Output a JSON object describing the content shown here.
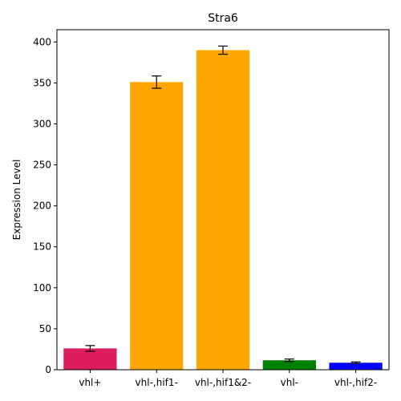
{
  "chart_data": {
    "type": "bar",
    "title": "Stra6",
    "xlabel": "",
    "ylabel": "Expression Level",
    "categories": [
      "vhl+",
      "vhl-,hif1-",
      "vhl-,hif1&2-",
      "vhl-",
      "vhl-,hif2-"
    ],
    "values": [
      26,
      351,
      390,
      11.5,
      8.5
    ],
    "errors": [
      3.5,
      7.5,
      5,
      1.5,
      1
    ],
    "colors": [
      "#dc1c5c",
      "#ffa500",
      "#ffa500",
      "#008000",
      "#0000ff"
    ],
    "ylim": [
      0,
      415
    ],
    "yticks": [
      0,
      50,
      100,
      150,
      200,
      250,
      300,
      350,
      400
    ],
    "grid": false,
    "legend": "none"
  }
}
